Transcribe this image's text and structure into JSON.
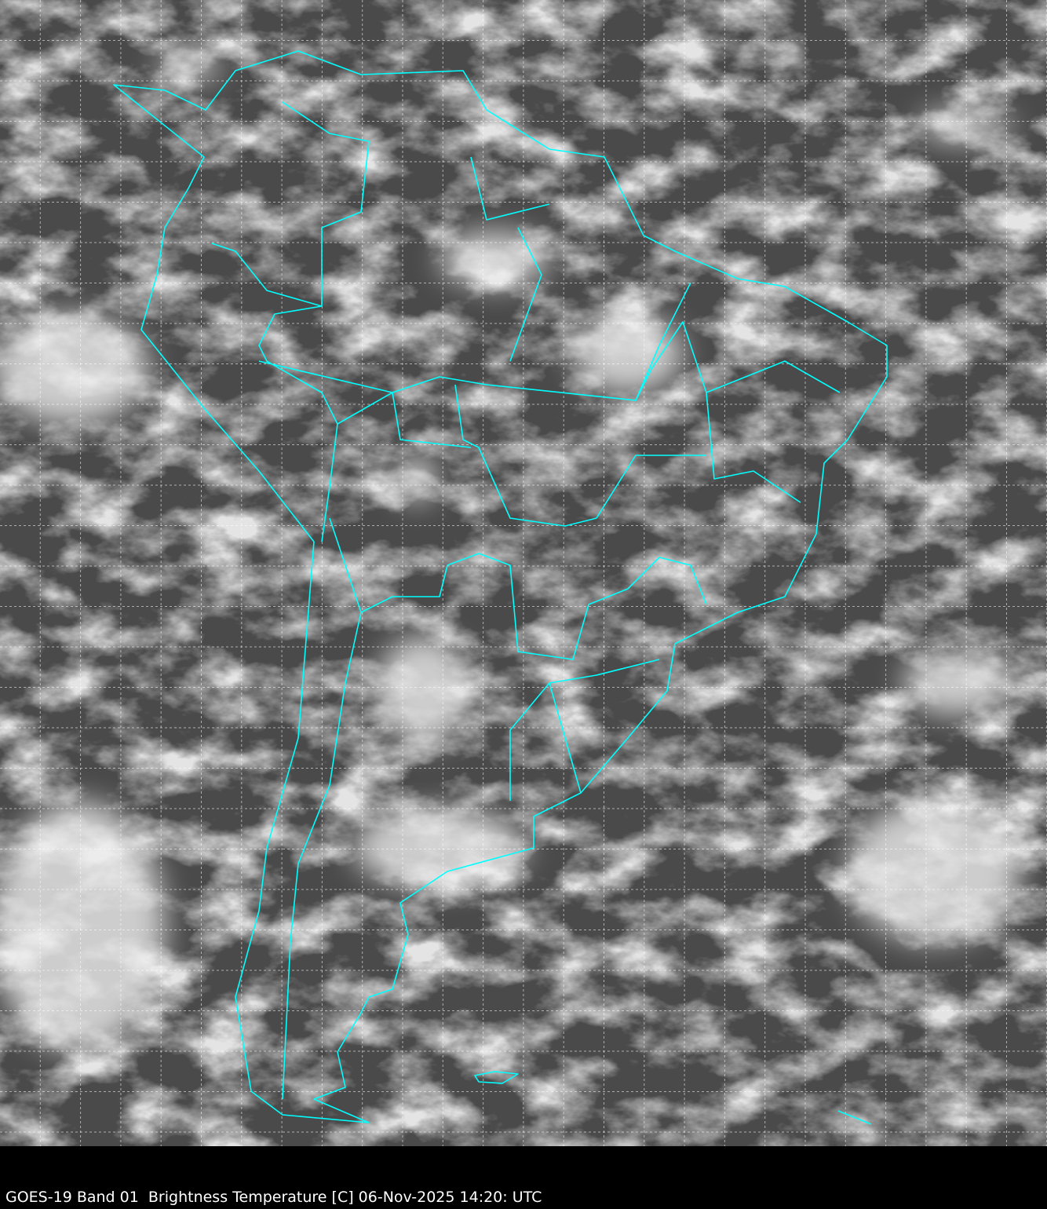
{
  "caption": "GOES-19 Band 01  Brightness Temperature [C] 06-Nov-2025 14:20: UTC",
  "colors": {
    "background": "#000000",
    "imagery_base": "#4a4a4a",
    "cloud": "#e8e8e8",
    "borders": "#00ffff",
    "grid": "#ffffff",
    "caption_text": "#ffffff"
  },
  "map": {
    "projection_grid": "dashed lat/lon graticule",
    "region": "South America"
  }
}
